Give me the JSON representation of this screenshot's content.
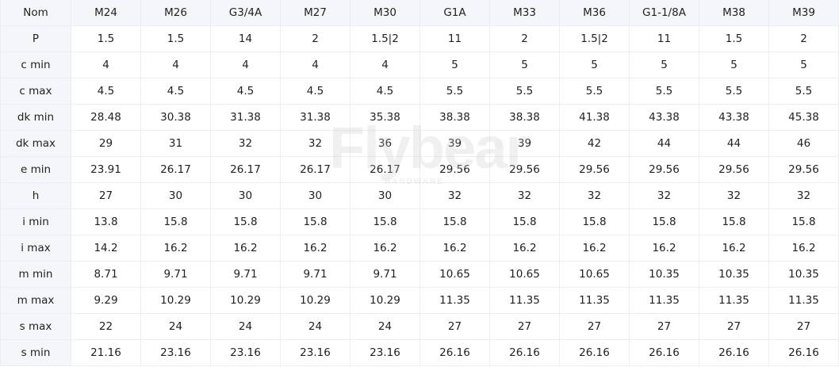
{
  "table": {
    "header": [
      "Nom",
      "M24",
      "M26",
      "G3/4A",
      "M27",
      "M30",
      "G1A",
      "M33",
      "M36",
      "G1-1/8A",
      "M38",
      "M39"
    ],
    "rows": [
      [
        "P",
        "1.5",
        "1.5",
        "14",
        "2",
        "1.5|2",
        "11",
        "2",
        "1.5|2",
        "11",
        "1.5",
        "2"
      ],
      [
        "c min",
        "4",
        "4",
        "4",
        "4",
        "4",
        "5",
        "5",
        "5",
        "5",
        "5",
        "5"
      ],
      [
        "c max",
        "4.5",
        "4.5",
        "4.5",
        "4.5",
        "4.5",
        "5.5",
        "5.5",
        "5.5",
        "5.5",
        "5.5",
        "5.5"
      ],
      [
        "dk min",
        "28.48",
        "30.38",
        "31.38",
        "31.38",
        "35.38",
        "38.38",
        "38.38",
        "41.38",
        "43.38",
        "43.38",
        "45.38"
      ],
      [
        "dk max",
        "29",
        "31",
        "32",
        "32",
        "36",
        "39",
        "39",
        "42",
        "44",
        "44",
        "46"
      ],
      [
        "e min",
        "23.91",
        "26.17",
        "26.17",
        "26.17",
        "26.17",
        "29.56",
        "29.56",
        "29.56",
        "29.56",
        "29.56",
        "29.56"
      ],
      [
        "h",
        "27",
        "30",
        "30",
        "30",
        "30",
        "32",
        "32",
        "32",
        "32",
        "32",
        "32"
      ],
      [
        "i min",
        "13.8",
        "15.8",
        "15.8",
        "15.8",
        "15.8",
        "15.8",
        "15.8",
        "15.8",
        "15.8",
        "15.8",
        "15.8"
      ],
      [
        "i max",
        "14.2",
        "16.2",
        "16.2",
        "16.2",
        "16.2",
        "16.2",
        "16.2",
        "16.2",
        "16.2",
        "16.2",
        "16.2"
      ],
      [
        "m min",
        "8.71",
        "9.71",
        "9.71",
        "9.71",
        "9.71",
        "10.65",
        "10.65",
        "10.65",
        "10.35",
        "10.35",
        "10.35"
      ],
      [
        "m max",
        "9.29",
        "10.29",
        "10.29",
        "10.29",
        "10.29",
        "11.35",
        "11.35",
        "11.35",
        "11.35",
        "11.35",
        "11.35"
      ],
      [
        "s max",
        "22",
        "24",
        "24",
        "24",
        "24",
        "27",
        "27",
        "27",
        "27",
        "27",
        "27"
      ],
      [
        "s min",
        "21.16",
        "23.16",
        "23.16",
        "23.16",
        "23.16",
        "26.16",
        "26.16",
        "26.16",
        "26.16",
        "26.16",
        "26.16"
      ]
    ]
  },
  "watermark": {
    "brand": "Flybear",
    "sub": "HARDWARE",
    "mark": "®"
  },
  "colors": {
    "header_bg": "#f4f6f9",
    "border": "#ebeef3",
    "text": "#222222"
  }
}
